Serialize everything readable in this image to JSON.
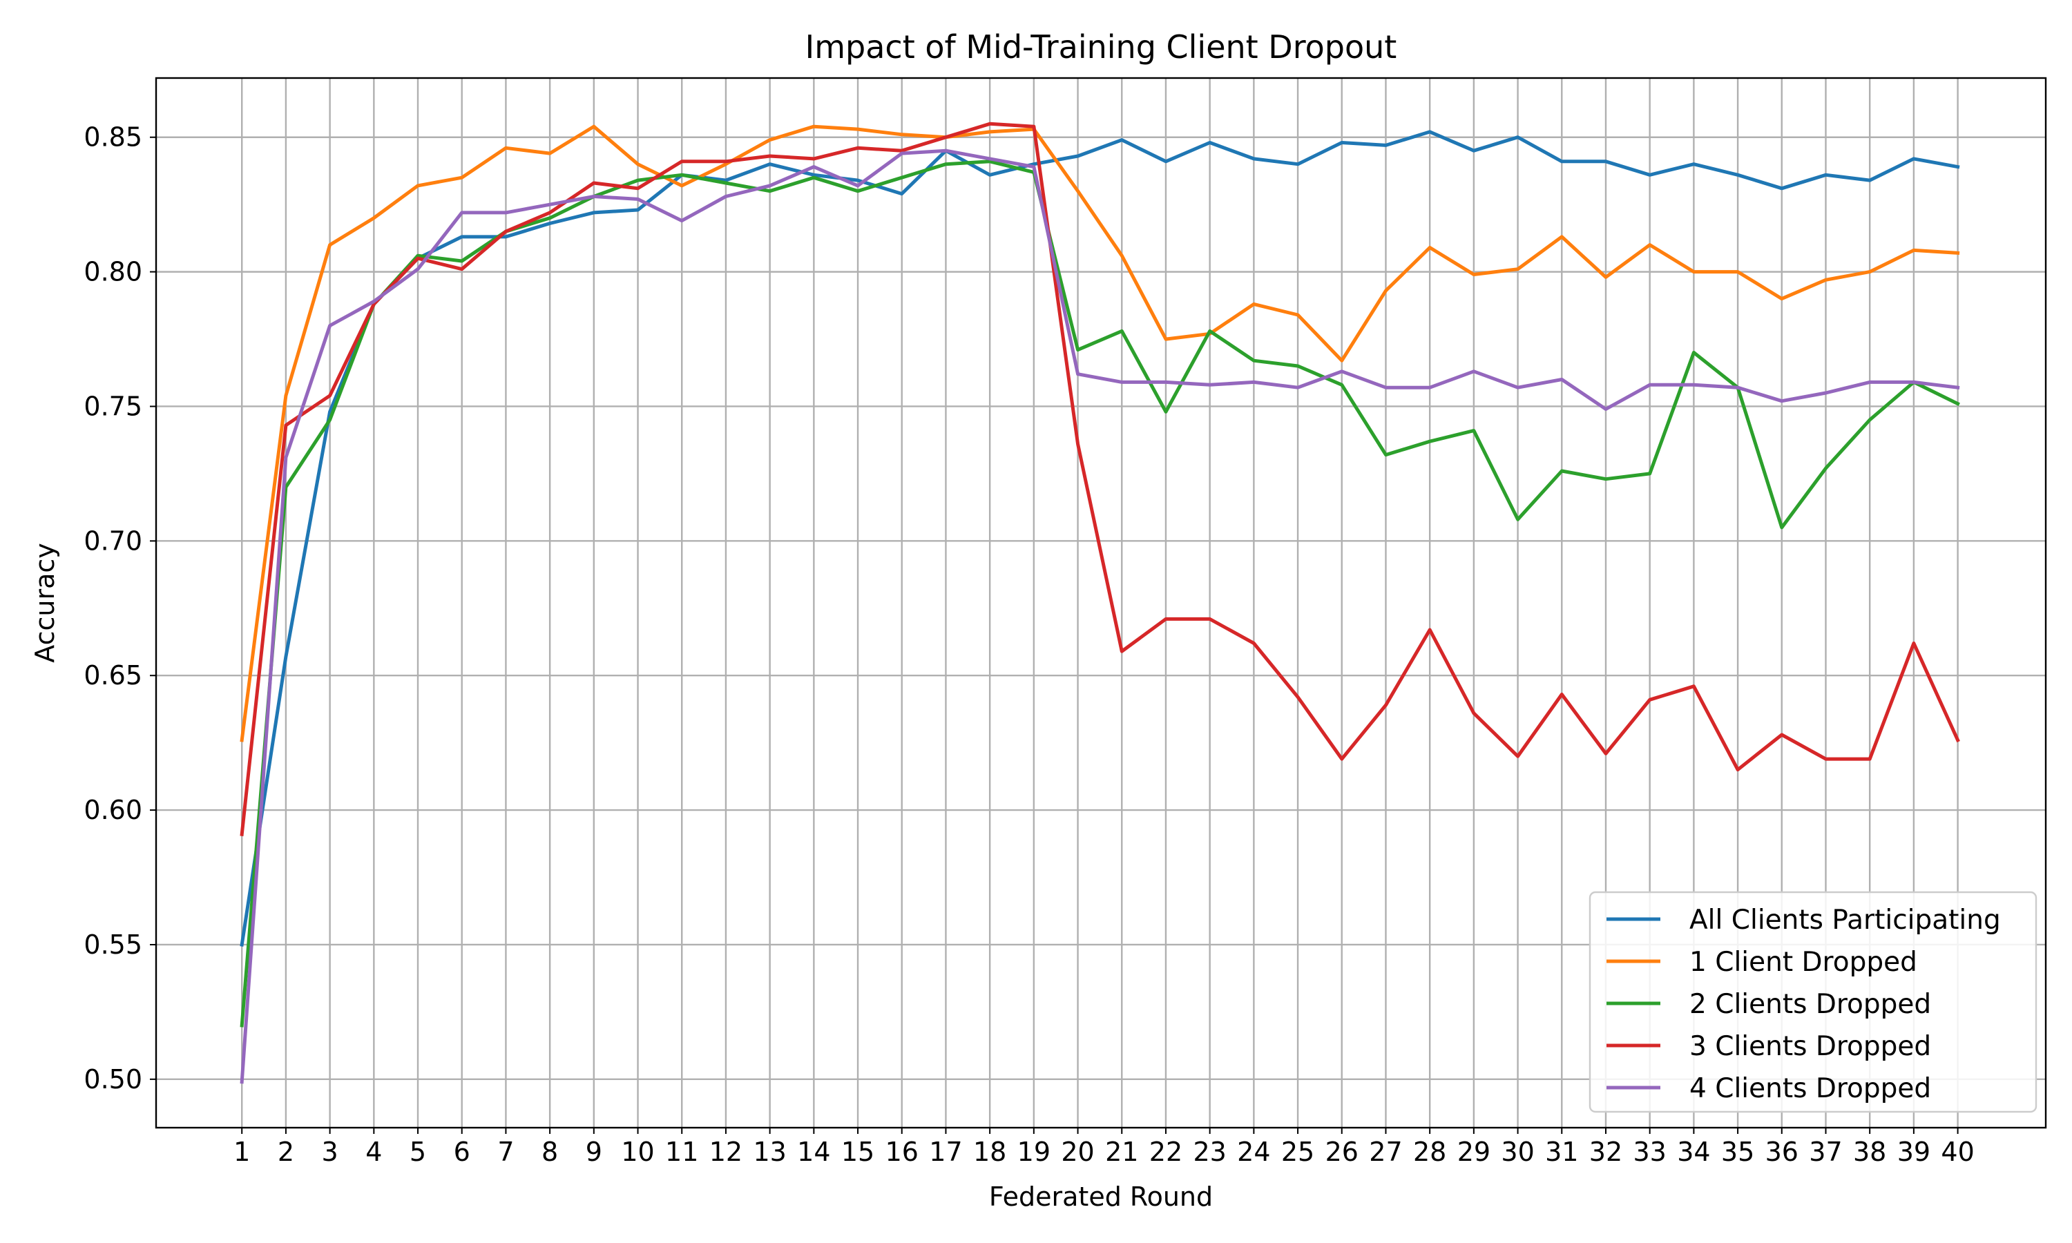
{
  "chart_data": {
    "type": "line",
    "title": "Impact of Mid-Training Client Dropout",
    "xlabel": "Federated Round",
    "ylabel": "Accuracy",
    "x": [
      1,
      2,
      3,
      4,
      5,
      6,
      7,
      8,
      9,
      10,
      11,
      12,
      13,
      14,
      15,
      16,
      17,
      18,
      19,
      20,
      21,
      22,
      23,
      24,
      25,
      26,
      27,
      28,
      29,
      30,
      31,
      32,
      33,
      34,
      35,
      36,
      37,
      38,
      39,
      40
    ],
    "xlim": [
      -0.95,
      42
    ],
    "ylim": [
      0.482,
      0.872
    ],
    "yticks": [
      "0.50",
      "0.55",
      "0.60",
      "0.65",
      "0.70",
      "0.75",
      "0.80",
      "0.85"
    ],
    "ytick_values": [
      0.5,
      0.55,
      0.6,
      0.65,
      0.7,
      0.75,
      0.8,
      0.85
    ],
    "grid": true,
    "legend_position": "lower-right",
    "series": [
      {
        "name": "All Clients Participating",
        "color": "#1f77b4",
        "values": [
          0.55,
          0.657,
          0.748,
          0.788,
          0.805,
          0.813,
          0.813,
          0.818,
          0.822,
          0.823,
          0.836,
          0.834,
          0.84,
          0.836,
          0.834,
          0.829,
          0.845,
          0.836,
          0.84,
          0.843,
          0.849,
          0.841,
          0.848,
          0.842,
          0.84,
          0.848,
          0.847,
          0.852,
          0.845,
          0.85,
          0.841,
          0.841,
          0.836,
          0.84,
          0.836,
          0.831,
          0.836,
          0.834,
          0.842,
          0.839
        ]
      },
      {
        "name": "1 Client Dropped",
        "color": "#ff7f0e",
        "values": [
          0.626,
          0.754,
          0.81,
          0.82,
          0.832,
          0.835,
          0.846,
          0.844,
          0.854,
          0.84,
          0.832,
          0.84,
          0.849,
          0.854,
          0.853,
          0.851,
          0.85,
          0.852,
          0.853,
          0.83,
          0.806,
          0.775,
          0.777,
          0.788,
          0.784,
          0.767,
          0.793,
          0.809,
          0.799,
          0.801,
          0.813,
          0.798,
          0.81,
          0.8,
          0.8,
          0.79,
          0.797,
          0.8,
          0.808,
          0.807
        ]
      },
      {
        "name": "2 Clients Dropped",
        "color": "#2ca02c",
        "values": [
          0.52,
          0.72,
          0.745,
          0.788,
          0.806,
          0.804,
          0.815,
          0.82,
          0.828,
          0.834,
          0.836,
          0.833,
          0.83,
          0.835,
          0.83,
          0.835,
          0.84,
          0.841,
          0.837,
          0.771,
          0.778,
          0.748,
          0.778,
          0.767,
          0.765,
          0.758,
          0.732,
          0.737,
          0.741,
          0.708,
          0.726,
          0.723,
          0.725,
          0.77,
          0.757,
          0.705,
          0.727,
          0.745,
          0.759,
          0.751
        ]
      },
      {
        "name": "3 Clients Dropped",
        "color": "#d62728",
        "values": [
          0.591,
          0.743,
          0.754,
          0.788,
          0.805,
          0.801,
          0.815,
          0.822,
          0.833,
          0.831,
          0.841,
          0.841,
          0.843,
          0.842,
          0.846,
          0.845,
          0.85,
          0.855,
          0.854,
          0.736,
          0.659,
          0.671,
          0.671,
          0.662,
          0.642,
          0.619,
          0.639,
          0.667,
          0.636,
          0.62,
          0.643,
          0.621,
          0.641,
          0.646,
          0.615,
          0.628,
          0.619,
          0.619,
          0.662,
          0.626
        ]
      },
      {
        "name": "4 Clients Dropped",
        "color": "#9467bd",
        "values": [
          0.499,
          0.731,
          0.78,
          0.789,
          0.801,
          0.822,
          0.822,
          0.825,
          0.828,
          0.827,
          0.819,
          0.828,
          0.832,
          0.839,
          0.832,
          0.844,
          0.845,
          0.842,
          0.839,
          0.762,
          0.759,
          0.759,
          0.758,
          0.759,
          0.757,
          0.763,
          0.757,
          0.757,
          0.763,
          0.757,
          0.76,
          0.749,
          0.758,
          0.758,
          0.757,
          0.752,
          0.755,
          0.759,
          0.759,
          0.757
        ]
      }
    ]
  }
}
